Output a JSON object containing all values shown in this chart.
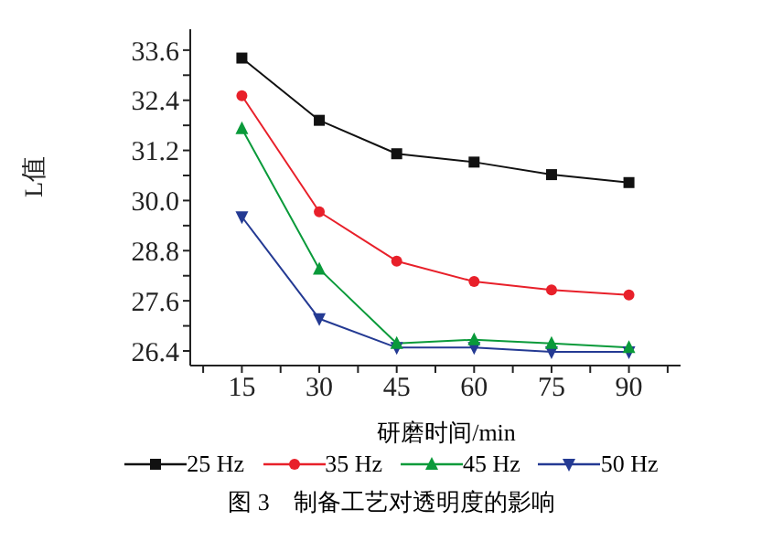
{
  "chart_data": {
    "type": "line",
    "xlabel": "研磨时间/min",
    "ylabel": "L值",
    "annotations": [
      "图 3　制备工艺对透明度的影响"
    ],
    "x": [
      15,
      30,
      45,
      60,
      75,
      90
    ],
    "series": [
      {
        "name": "25 Hz",
        "color": "#111111",
        "marker": "square",
        "values": [
          33.41,
          31.92,
          31.12,
          30.92,
          30.62,
          30.43
        ]
      },
      {
        "name": "35 Hz",
        "color": "#e8202a",
        "marker": "circle",
        "values": [
          32.51,
          29.73,
          28.55,
          28.06,
          27.86,
          27.74
        ]
      },
      {
        "name": "45 Hz",
        "color": "#0a9a3a",
        "marker": "triangle",
        "values": [
          31.72,
          28.36,
          26.58,
          26.67,
          26.58,
          26.48
        ]
      },
      {
        "name": "50 Hz",
        "color": "#243a93",
        "marker": "triangle-down",
        "values": [
          29.61,
          27.17,
          26.48,
          26.48,
          26.38,
          26.38
        ]
      }
    ],
    "xlim": [
      5,
      100
    ],
    "xticks": [
      {
        "value": 7.5,
        "label": null
      },
      15,
      {
        "value": 22.5,
        "label": null
      },
      30,
      {
        "value": 37.5,
        "label": null
      },
      45,
      {
        "value": 52.5,
        "label": null
      },
      60,
      {
        "value": 67.5,
        "label": null
      },
      75,
      {
        "value": 82.5,
        "label": null
      },
      90,
      {
        "value": 97.5,
        "label": null
      }
    ],
    "ylim": [
      26.05,
      34.1
    ],
    "yticks": [
      {
        "value": 26.4,
        "label": "26.4"
      },
      {
        "value": 27,
        "label": null
      },
      {
        "value": 27.6,
        "label": "27.6"
      },
      {
        "value": 28.2,
        "label": null
      },
      {
        "value": 28.8,
        "label": "28.8"
      },
      {
        "value": 29.4,
        "label": null
      },
      {
        "value": 30,
        "label": "30.0"
      },
      {
        "value": 30.6,
        "label": null
      },
      {
        "value": 31.2,
        "label": "31.2"
      },
      {
        "value": 31.8,
        "label": null
      },
      {
        "value": 32.4,
        "label": "32.4"
      },
      {
        "value": 33,
        "label": null
      },
      {
        "value": 33.6,
        "label": "33.6"
      }
    ],
    "grid": false,
    "legend": "bottom",
    "line_style": "solid"
  }
}
